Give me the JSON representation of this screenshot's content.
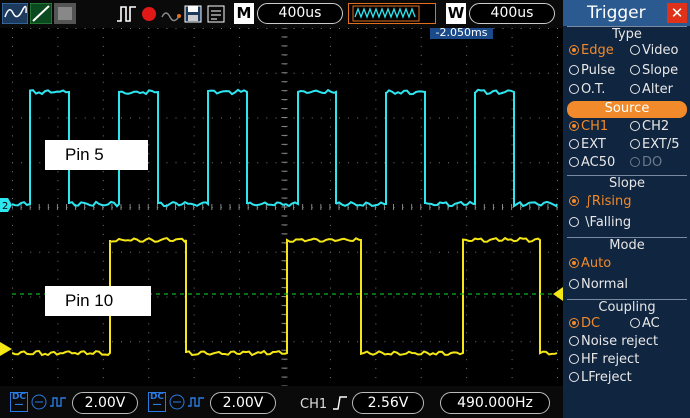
{
  "toolbar": {
    "mode_letter": "M",
    "main_timebase": "400us",
    "window_letter": "W",
    "window_timebase": "400us",
    "trigger_offset": "-2.050ms"
  },
  "channels": {
    "ch1_coupling_badge": "DC",
    "ch1_volts": "2.00V",
    "ch2_coupling_badge": "DC",
    "ch2_volts": "2.00V",
    "trigger_source": "CH1",
    "trigger_level": "2.56V",
    "frequency": "490.000Hz"
  },
  "labels": {
    "ch2_signal_label": "Pin 5",
    "ch1_signal_label": "Pin 10"
  },
  "colors": {
    "ch1": "#f5e616",
    "ch2": "#2ee6f0",
    "trigger_level_line": "#10b020",
    "panel_bg": "#10253f",
    "accent": "#f08a2a"
  },
  "panel": {
    "title": "Trigger",
    "type": {
      "heading": "Type",
      "options": [
        "Edge",
        "Video",
        "Pulse",
        "Slope",
        "O.T.",
        "Alter"
      ],
      "selected": "Edge"
    },
    "source": {
      "heading": "Source",
      "options": [
        "CH1",
        "CH2",
        "EXT",
        "EXT/5",
        "AC50",
        "DO"
      ],
      "selected": "CH1"
    },
    "slope": {
      "heading": "Slope",
      "options": [
        "Rising",
        "Falling"
      ],
      "selected": "Rising"
    },
    "mode": {
      "heading": "Mode",
      "options": [
        "Auto",
        "Normal"
      ],
      "selected": "Auto"
    },
    "coupling": {
      "heading": "Coupling",
      "options": [
        "DC",
        "AC",
        "Noise reject",
        "HF reject",
        "LFreject"
      ],
      "selected": "DC"
    }
  }
}
